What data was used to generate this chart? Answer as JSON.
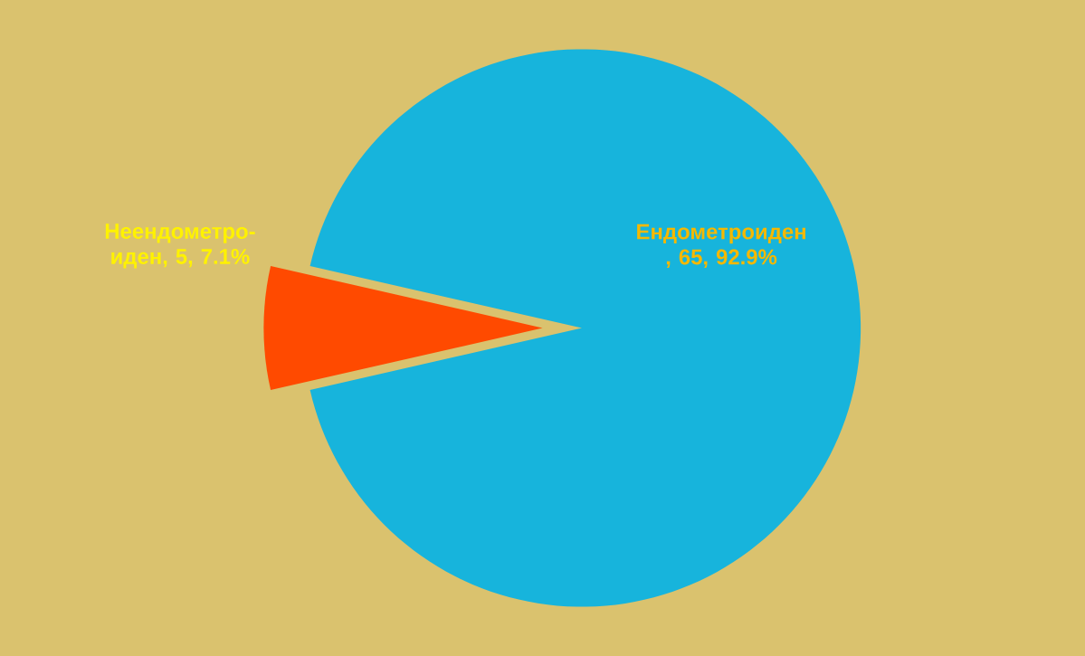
{
  "chart_data": {
    "type": "pie",
    "categories": [
      "Ендометроиден",
      "Неендометро-иден"
    ],
    "values": [
      65,
      5
    ],
    "colors": [
      "#17b4dc",
      "#ff4a00"
    ],
    "value_labels": [
      ", 65, 92.9%",
      ", 5, 7.1%"
    ],
    "legend": false
  }
}
